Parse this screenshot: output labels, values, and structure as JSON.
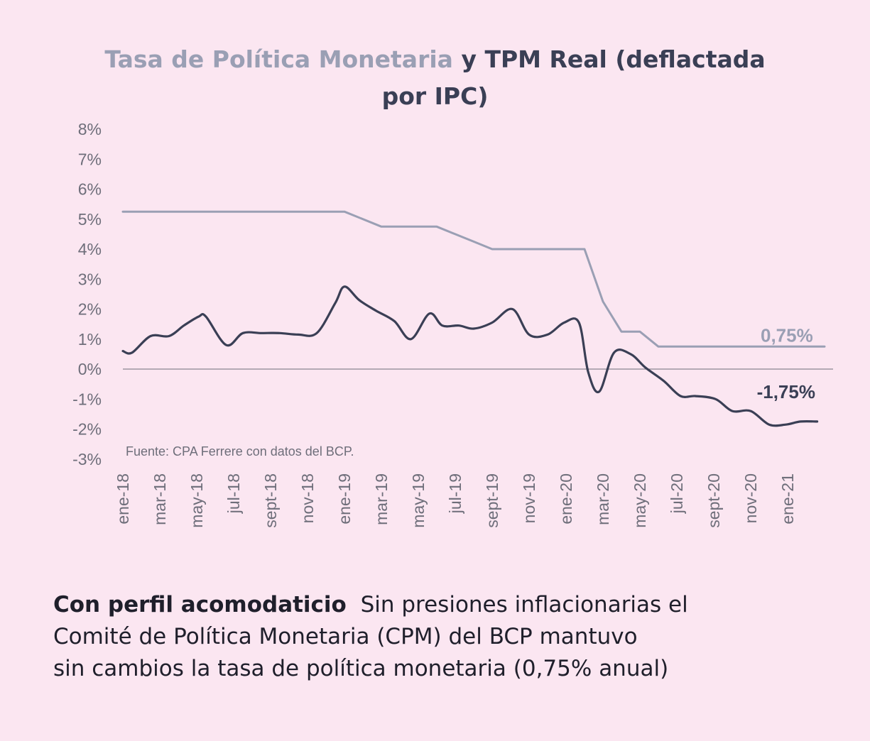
{
  "title": {
    "part1": "Tasa de Política Monetaria",
    "part2": "y TPM Real (deflactada",
    "part3": "por IPC)"
  },
  "caption": {
    "lead": "Con perfil acomodaticio",
    "line1": "Sin presiones inflacionarias el",
    "line2": "Comité de Política Monetaria (CPM) del BCP mantuvo",
    "line3": "sin cambios la tasa de política monetaria (0,75% anual)"
  },
  "colors": {
    "background": "#fbe6f1",
    "tpm_line": "#9a9fb4",
    "real_line": "#3a3f55",
    "zero_line": "#8a8591",
    "axis_text": "#6e6e7a"
  },
  "chart_data": {
    "type": "line",
    "ylim": [
      -3,
      8
    ],
    "yticks": [
      "8%",
      "7%",
      "6%",
      "5%",
      "4%",
      "3%",
      "2%",
      "1%",
      "0%",
      "-1%",
      "-2%",
      "-3%"
    ],
    "ytick_values": [
      8,
      7,
      6,
      5,
      4,
      3,
      2,
      1,
      0,
      -1,
      -2,
      -3
    ],
    "xtick_labels": [
      "ene-18",
      "mar-18",
      "may-18",
      "jul-18",
      "sept-18",
      "nov-18",
      "ene-19",
      "mar-19",
      "may-19",
      "jul-19",
      "sept-19",
      "nov-19",
      "ene-20",
      "mar-20",
      "may-20",
      "jul-20",
      "sept-20",
      "nov-20",
      "ene-21"
    ],
    "xtick_month_index": [
      0,
      2,
      4,
      6,
      8,
      10,
      12,
      14,
      16,
      18,
      20,
      22,
      24,
      26,
      28,
      30,
      32,
      34,
      36
    ],
    "x_month_index_range": [
      0,
      38
    ],
    "grid": false,
    "source_note": "Fuente: CPA Ferrere con datos del BCP.",
    "series": [
      {
        "key": "tpm",
        "month_index": [
          0,
          12,
          14,
          15,
          16,
          17,
          18,
          19,
          20,
          21,
          22,
          23,
          24,
          25,
          26,
          27,
          28,
          29,
          30,
          31,
          32,
          33,
          34,
          35,
          36,
          37,
          38
        ],
        "values": [
          5.25,
          5.25,
          4.75,
          4.75,
          4.75,
          4.75,
          4.5,
          4.25,
          4.0,
          4.0,
          4.0,
          4.0,
          4.0,
          4.0,
          2.25,
          1.25,
          1.25,
          0.75,
          0.75,
          0.75,
          0.75,
          0.75,
          0.75,
          0.75,
          0.75,
          0.75,
          0.75
        ],
        "end_label": "0,75%"
      },
      {
        "key": "real",
        "month_index": [
          0,
          0.5,
          1.5,
          2.5,
          3.3,
          4.1,
          4.5,
          5.6,
          6.5,
          7.5,
          8.5,
          9.5,
          10.5,
          11.5,
          12,
          12.8,
          13.7,
          14.7,
          15.6,
          16.6,
          17.3,
          18.2,
          19.0,
          20.0,
          21.1,
          22.0,
          23.0,
          23.9,
          24.7,
          25.2,
          25.8,
          26.6,
          27.5,
          28.3,
          29.3,
          30.2,
          31.0,
          32.1,
          33.0,
          34.0,
          35.0,
          35.9,
          36.7,
          37.6
        ],
        "values": [
          0.6,
          0.55,
          1.1,
          1.1,
          1.45,
          1.75,
          1.75,
          0.8,
          1.2,
          1.2,
          1.2,
          1.15,
          1.2,
          2.2,
          2.75,
          2.3,
          1.95,
          1.6,
          1.0,
          1.85,
          1.45,
          1.45,
          1.35,
          1.55,
          2.0,
          1.15,
          1.15,
          1.55,
          1.55,
          -0.1,
          -0.75,
          0.55,
          0.5,
          0.05,
          -0.4,
          -0.9,
          -0.9,
          -1.0,
          -1.4,
          -1.4,
          -1.85,
          -1.85,
          -1.75,
          -1.75
        ],
        "end_label": "-1,75%"
      }
    ]
  }
}
